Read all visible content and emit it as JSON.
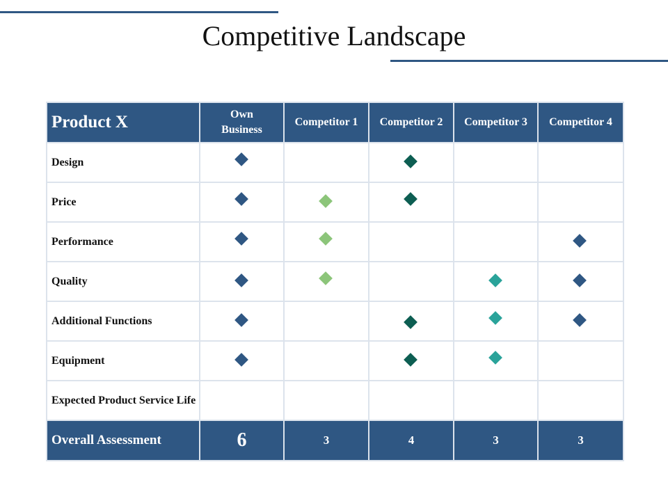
{
  "title": "Competitive Landscape",
  "colors": {
    "header_bg": "#2f5783",
    "grid_line": "#dce3ec",
    "own_business": "#2f5783",
    "competitor_1": "#8cc57a",
    "competitor_2": "#0d5e52",
    "competitor_3": "#2aa39a",
    "competitor_4": "#2f5783"
  },
  "table": {
    "corner_label": "Product X",
    "columns": [
      {
        "label": "Own Business",
        "color": "#2f5783"
      },
      {
        "label": "Competitor 1",
        "color": "#8cc57a"
      },
      {
        "label": "Competitor 2",
        "color": "#0d5e52"
      },
      {
        "label": "Competitor 3",
        "color": "#2aa39a"
      },
      {
        "label": "Competitor 4",
        "color": "#2f5783"
      }
    ],
    "rows": [
      {
        "label": "Design",
        "marks": [
          true,
          false,
          true,
          false,
          false
        ]
      },
      {
        "label": "Price",
        "marks": [
          true,
          true,
          true,
          false,
          false
        ]
      },
      {
        "label": "Performance",
        "marks": [
          true,
          true,
          false,
          false,
          true
        ]
      },
      {
        "label": "Quality",
        "marks": [
          true,
          true,
          false,
          true,
          true
        ]
      },
      {
        "label": "Additional Functions",
        "marks": [
          true,
          false,
          true,
          true,
          true
        ]
      },
      {
        "label": "Equipment",
        "marks": [
          true,
          false,
          true,
          true,
          false
        ]
      },
      {
        "label": "Expected Product Service Life",
        "marks": [
          false,
          false,
          false,
          false,
          false
        ]
      }
    ],
    "footer": {
      "label": "Overall Assessment",
      "scores": [
        "6",
        "3",
        "4",
        "3",
        "3"
      ]
    }
  }
}
